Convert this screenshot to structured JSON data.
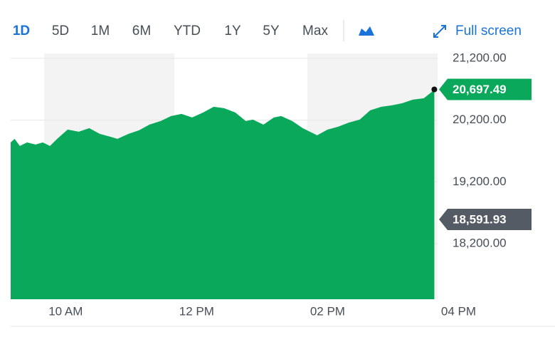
{
  "toolbar": {
    "ranges": [
      "1D",
      "5D",
      "1M",
      "6M",
      "YTD",
      "1Y",
      "5Y",
      "Max"
    ],
    "active": "1D",
    "fullscreen": "Full screen"
  },
  "chart_data": {
    "type": "area",
    "x": [
      9.16,
      9.22,
      9.3,
      9.41,
      9.54,
      9.65,
      9.76,
      9.87,
      10.03,
      10.2,
      10.36,
      10.52,
      10.68,
      10.79,
      10.96,
      11.12,
      11.28,
      11.45,
      11.61,
      11.77,
      11.93,
      12.1,
      12.26,
      12.42,
      12.59,
      12.75,
      12.86,
      13.02,
      13.18,
      13.29,
      13.46,
      13.62,
      13.84,
      14,
      14.16,
      14.33,
      14.49,
      14.65,
      14.82,
      14.98,
      15.14,
      15.3,
      15.47,
      15.58,
      15.63
    ],
    "series": [
      {
        "color": "#0aa85a",
        "values": [
          19839,
          19897,
          19782,
          19839,
          19805,
          19839,
          19782,
          19897,
          20047,
          20012,
          20070,
          19978,
          19932,
          19897,
          19978,
          20035,
          20128,
          20185,
          20266,
          20301,
          20243,
          20324,
          20416,
          20393,
          20324,
          20185,
          20208,
          20128,
          20243,
          20266,
          20185,
          20070,
          19955,
          20047,
          20093,
          20162,
          20208,
          20358,
          20416,
          20439,
          20474,
          20531,
          20554,
          20647,
          20697.49
        ]
      }
    ],
    "xlim": [
      9.16,
      15.68
    ],
    "xticks": [
      {
        "value": 10,
        "label": "10 AM"
      },
      {
        "value": 12,
        "label": "12 PM"
      },
      {
        "value": 14,
        "label": "02 PM"
      },
      {
        "value": 16,
        "label": "04 PM"
      }
    ],
    "ylim": [
      17300,
      21280
    ],
    "yticks": [
      {
        "value": 18200,
        "label": "18,200.00"
      },
      {
        "value": 19200,
        "label": "19,200.00"
      },
      {
        "value": 20200,
        "label": "20,200.00"
      },
      {
        "value": 21200,
        "label": "21,200.00"
      }
    ],
    "grid": true,
    "annotations": [
      {
        "value": 20697.49,
        "label": "20,697.49",
        "color": "#0aa85a"
      },
      {
        "value": 18591.93,
        "label": "18,591.93",
        "color": "#545b64"
      }
    ]
  }
}
